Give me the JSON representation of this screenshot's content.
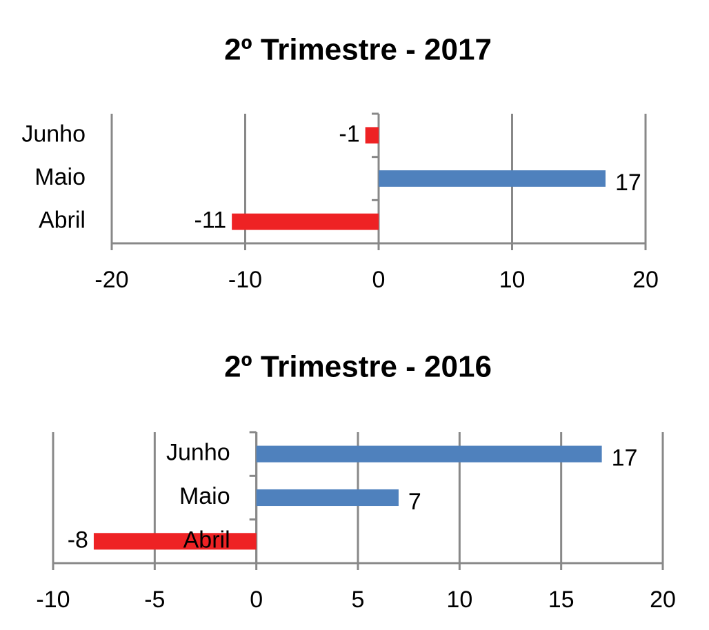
{
  "chart_data": [
    {
      "type": "bar",
      "orientation": "horizontal",
      "title": "2º Trimestre - 2017",
      "categories": [
        "Abril",
        "Maio",
        "Junho"
      ],
      "values": [
        -11,
        17,
        -1
      ],
      "colors": [
        "#ee2224",
        "#4f81bd",
        "#ee2224"
      ],
      "xlim": [
        -20,
        20
      ],
      "xticks": [
        -20,
        -10,
        0,
        10,
        20
      ],
      "grid": true
    },
    {
      "type": "bar",
      "orientation": "horizontal",
      "title": "2º Trimestre - 2016",
      "categories": [
        "Abril",
        "Maio",
        "Junho"
      ],
      "values": [
        -8,
        7,
        17
      ],
      "colors": [
        "#ee2224",
        "#4f81bd",
        "#4f81bd"
      ],
      "xlim": [
        -10,
        20
      ],
      "xticks": [
        -10,
        -5,
        0,
        5,
        10,
        15,
        20
      ],
      "grid": true
    }
  ]
}
